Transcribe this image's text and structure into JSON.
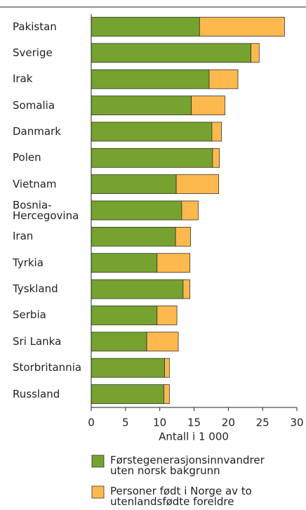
{
  "chart_data": {
    "type": "stacked-barh",
    "categories": [
      "Pakistan",
      "Sverige",
      "Irak",
      "Somalia",
      "Danmark",
      "Polen",
      "Vietnam",
      "Bosnia-\nHercegovina",
      "Iran",
      "Tyrkia",
      "Tyskland",
      "Serbia",
      "Sri Lanka",
      "Storbritannia",
      "Russland"
    ],
    "series": [
      {
        "name": "Førstegenerasjonsinnvandrer\nuten norsk bakgrunn",
        "color": "#76a22f",
        "values": [
          15.8,
          23.3,
          17.2,
          14.6,
          17.6,
          17.7,
          12.4,
          13.2,
          12.3,
          9.6,
          13.4,
          9.6,
          8.1,
          10.7,
          10.6
        ]
      },
      {
        "name": "Personer født i Norge av to\nutenlandsfødte foreldre",
        "color": "#fdb94e",
        "values": [
          12.4,
          1.2,
          4.2,
          4.9,
          1.4,
          1.0,
          6.2,
          2.4,
          2.2,
          4.8,
          1.0,
          2.9,
          4.6,
          0.7,
          0.8
        ]
      }
    ],
    "xlabel": "Antall i 1 000",
    "xlim": [
      0,
      30
    ],
    "xticks": [
      0,
      5,
      10,
      15,
      20,
      25,
      30
    ],
    "grid": false
  }
}
